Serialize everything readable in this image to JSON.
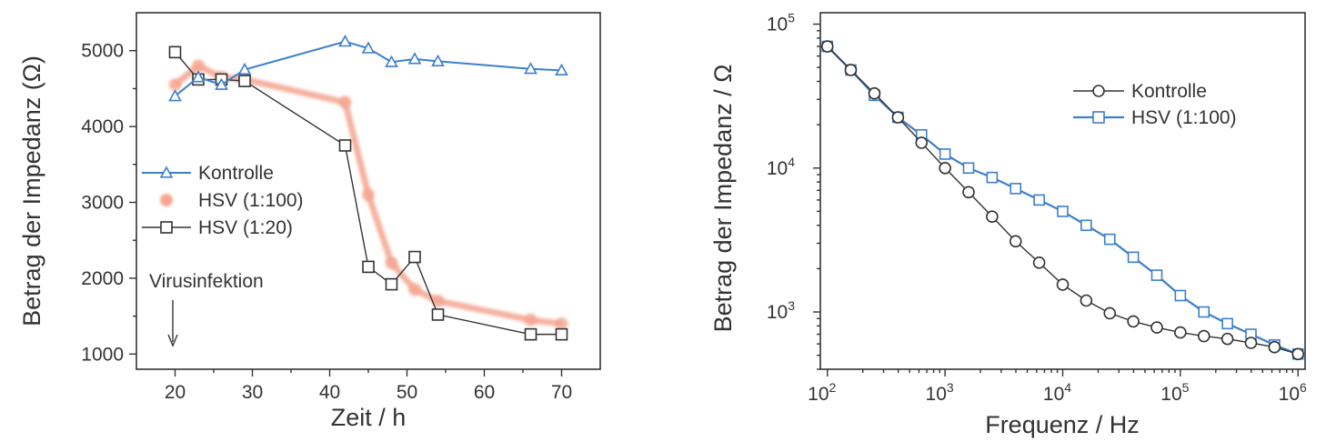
{
  "chart_data": [
    {
      "type": "line",
      "xlabel": "Zeit / h",
      "ylabel": "Betrag der Impedanz (Ω)",
      "xlim": [
        15,
        75
      ],
      "ylim": [
        800,
        5500
      ],
      "xticks": [
        20,
        30,
        40,
        50,
        60,
        70
      ],
      "yticks": [
        1000,
        2000,
        3000,
        4000,
        5000
      ],
      "legend_position": "center-left",
      "annotation": {
        "text": "Virusinfektion",
        "x": 20
      },
      "series": [
        {
          "name": "Kontrolle",
          "color": "#3d7fc9",
          "marker": "triangle",
          "x": [
            20,
            23,
            26,
            29,
            42,
            45,
            48,
            51,
            54,
            66,
            70
          ],
          "y": [
            4400,
            4650,
            4550,
            4750,
            5120,
            5030,
            4850,
            4890,
            4860,
            4760,
            4740
          ]
        },
        {
          "name": "HSV (1:100)",
          "color": "#f4a58f",
          "marker": "circle",
          "x": [
            20,
            23,
            26,
            29,
            42,
            45,
            48,
            51,
            54,
            66,
            70
          ],
          "y": [
            4550,
            4800,
            4650,
            4620,
            4320,
            3100,
            2200,
            1850,
            1700,
            1450,
            1400
          ]
        },
        {
          "name": "HSV (1:20)",
          "color": "#333333",
          "marker": "square",
          "x": [
            20,
            23,
            26,
            29,
            42,
            45,
            48,
            51,
            54,
            66,
            70
          ],
          "y": [
            4980,
            4620,
            4620,
            4600,
            3750,
            2150,
            1920,
            2280,
            1520,
            1260,
            1260
          ]
        }
      ]
    },
    {
      "type": "line",
      "scale": "log-log",
      "xlabel": "Frequenz / Hz",
      "ylabel": "Betrag der Impedanz / Ω",
      "xlim": [
        100,
        1000000
      ],
      "ylim": [
        400,
        120000
      ],
      "xticks": [
        100,
        1000,
        10000,
        100000,
        1000000
      ],
      "yticks": [
        1000,
        10000,
        100000
      ],
      "xtick_labels": [
        [
          "10",
          "2"
        ],
        [
          "10",
          "3"
        ],
        [
          "10",
          "4"
        ],
        [
          "10",
          "5"
        ],
        [
          "10",
          "6"
        ]
      ],
      "ytick_labels": [
        [
          "10",
          "3"
        ],
        [
          "10",
          "4"
        ],
        [
          "10",
          "5"
        ]
      ],
      "legend_position": "top-right",
      "series": [
        {
          "name": "Kontrolle",
          "color": "#333333",
          "marker": "circle",
          "x": [
            100,
            158,
            251,
            398,
            631,
            1000,
            1585,
            2512,
            3981,
            6310,
            10000,
            15850,
            25120,
            39810,
            63100,
            100000,
            158500,
            251200,
            398100,
            631000,
            1000000
          ],
          "y": [
            70000,
            48000,
            33000,
            22500,
            15000,
            10000,
            6800,
            4600,
            3100,
            2200,
            1550,
            1200,
            980,
            860,
            780,
            720,
            680,
            650,
            610,
            570,
            510
          ]
        },
        {
          "name": "HSV (1:100)",
          "color": "#3d7fc9",
          "marker": "square",
          "x": [
            100,
            158,
            251,
            398,
            631,
            1000,
            1585,
            2512,
            3981,
            6310,
            10000,
            15850,
            25120,
            39810,
            63100,
            100000,
            158500,
            251200,
            398100,
            631000,
            1000000
          ],
          "y": [
            70000,
            48000,
            32000,
            22500,
            17000,
            12500,
            10000,
            8600,
            7200,
            6000,
            5000,
            4000,
            3200,
            2400,
            1800,
            1300,
            1000,
            830,
            700,
            590,
            510
          ]
        }
      ]
    }
  ]
}
